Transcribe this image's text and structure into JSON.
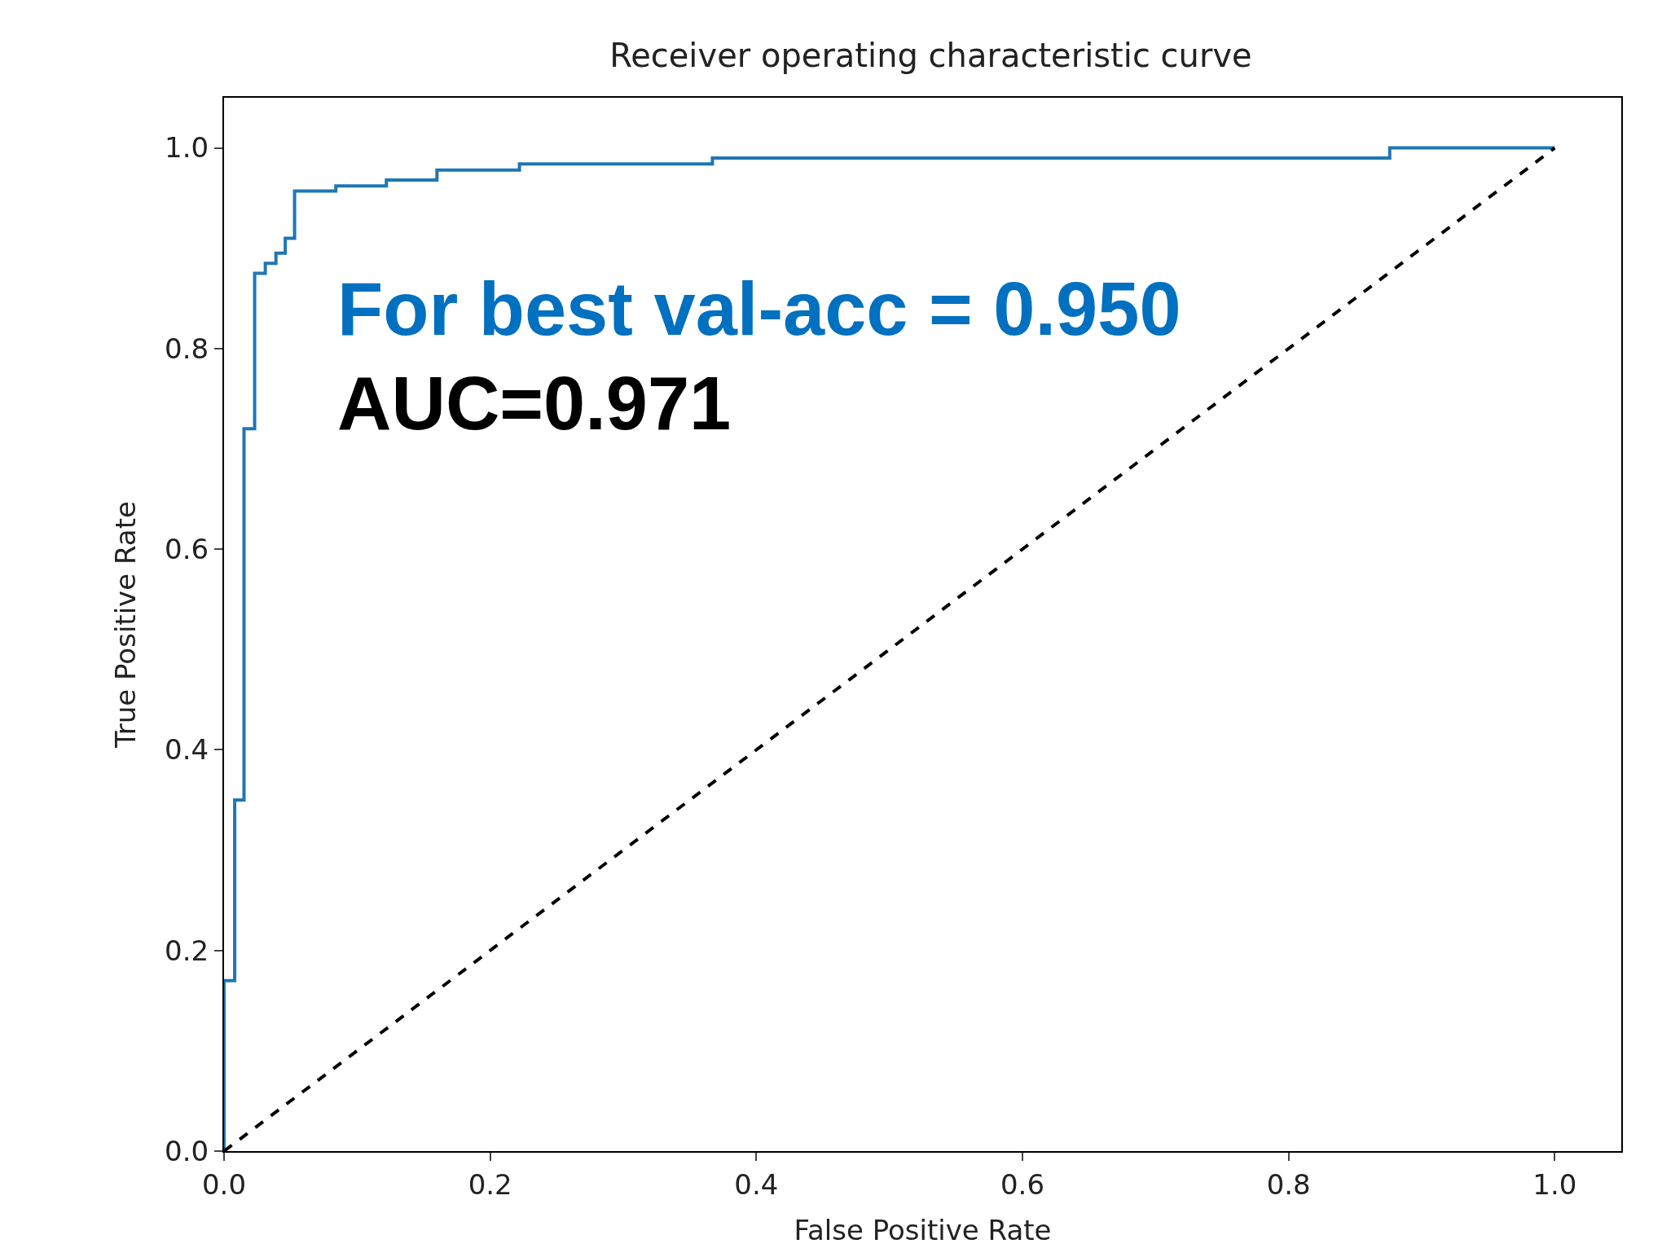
{
  "chart_data": {
    "type": "line",
    "title": "Receiver operating characteristic curve",
    "xlabel": "False Positive Rate",
    "ylabel": "True Positive Rate",
    "xlim": [
      0,
      1.05
    ],
    "ylim": [
      0,
      1.05
    ],
    "xticks": [
      {
        "value": 0,
        "label": "0.0"
      },
      0.2,
      0.4,
      0.6,
      0.8,
      {
        "value": 1,
        "label": "1.0"
      }
    ],
    "yticks": [
      {
        "value": 0,
        "label": "0.0"
      },
      0.2,
      0.4,
      0.6,
      0.8,
      {
        "value": 1,
        "label": "1.0"
      }
    ],
    "marker": "none",
    "annotations": [
      "For best val-acc = 0.950",
      "AUC=0.971"
    ],
    "series": [
      {
        "color": "#1f77b4",
        "line_style": "solid",
        "x": [
          0,
          0,
          0.008,
          0.008,
          0.015,
          0.015,
          0.023,
          0.023,
          0.031,
          0.031,
          0.039,
          0.039,
          0.046,
          0.046,
          0.053,
          0.053,
          0.084,
          0.084,
          0.122,
          0.122,
          0.16,
          0.16,
          0.222,
          0.222,
          0.367,
          0.367,
          0.876,
          0.876,
          1
        ],
        "values": [
          0,
          0.17,
          0.17,
          0.35,
          0.35,
          0.72,
          0.72,
          0.875,
          0.875,
          0.885,
          0.885,
          0.895,
          0.895,
          0.91,
          0.91,
          0.957,
          0.957,
          0.962,
          0.962,
          0.968,
          0.968,
          0.978,
          0.978,
          0.984,
          0.984,
          0.99,
          0.99,
          1,
          1
        ]
      },
      {
        "color": "#000000",
        "line_style": "dashed",
        "x": [
          0,
          1
        ],
        "values": [
          0,
          1
        ]
      }
    ]
  }
}
